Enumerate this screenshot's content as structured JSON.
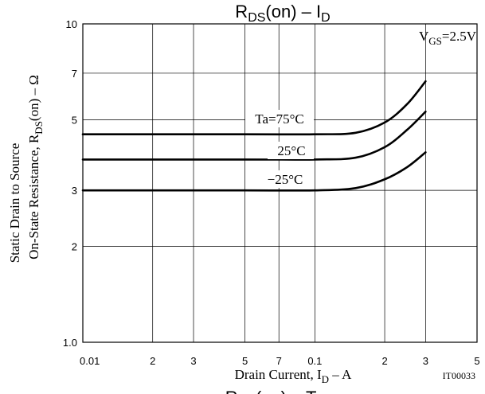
{
  "chart_data": {
    "type": "line",
    "title": {
      "main": "R",
      "sub": "DS",
      "rest": "(on)  –  I",
      "sub2": "D"
    },
    "bottom_cut_title": {
      "main": "R",
      "sub": "DS",
      "rest": "(on)  –  Ta"
    },
    "xlabel": {
      "pre": "Drain Current, I",
      "sub": "D",
      "post": "  –  A"
    },
    "ylabel_line1": "Static Drain to Source",
    "ylabel_line2": {
      "pre": "On-State Resistance, R",
      "sub": "DS",
      "post": "(on)  –  Ω"
    },
    "condition": {
      "pre": "V",
      "sub": "GS",
      "post": "=2.5V"
    },
    "code": "IT00033",
    "x_scale": "log",
    "y_scale": "log",
    "xlim": [
      0.01,
      0.5
    ],
    "ylim": [
      1.0,
      10
    ],
    "x_ticks": [
      {
        "v": 0.01,
        "label": "0.01"
      },
      {
        "v": 0.02,
        "label": "2"
      },
      {
        "v": 0.03,
        "label": "3"
      },
      {
        "v": 0.05,
        "label": "5"
      },
      {
        "v": 0.07,
        "label": "7"
      },
      {
        "v": 0.1,
        "label": "0.1"
      },
      {
        "v": 0.2,
        "label": "2"
      },
      {
        "v": 0.3,
        "label": "3"
      },
      {
        "v": 0.5,
        "label": "5"
      }
    ],
    "y_ticks": [
      {
        "v": 1.0,
        "label": "1.0"
      },
      {
        "v": 2,
        "label": "2"
      },
      {
        "v": 3,
        "label": "3"
      },
      {
        "v": 5,
        "label": "5"
      },
      {
        "v": 7,
        "label": "7"
      },
      {
        "v": 10,
        "label": "10"
      }
    ],
    "grid": true,
    "series": [
      {
        "name": "Ta=75°C",
        "x": [
          0.01,
          0.05,
          0.1,
          0.15,
          0.2,
          0.25,
          0.3
        ],
        "y": [
          4.5,
          4.5,
          4.5,
          4.55,
          4.9,
          5.6,
          6.6
        ]
      },
      {
        "name": "25°C",
        "x": [
          0.01,
          0.05,
          0.1,
          0.15,
          0.2,
          0.25,
          0.3
        ],
        "y": [
          3.75,
          3.75,
          3.75,
          3.8,
          4.1,
          4.65,
          5.3
        ]
      },
      {
        "name": "−25°C",
        "x": [
          0.01,
          0.05,
          0.1,
          0.15,
          0.2,
          0.25,
          0.3
        ],
        "y": [
          3.0,
          3.0,
          3.0,
          3.05,
          3.25,
          3.55,
          3.95
        ]
      }
    ]
  }
}
